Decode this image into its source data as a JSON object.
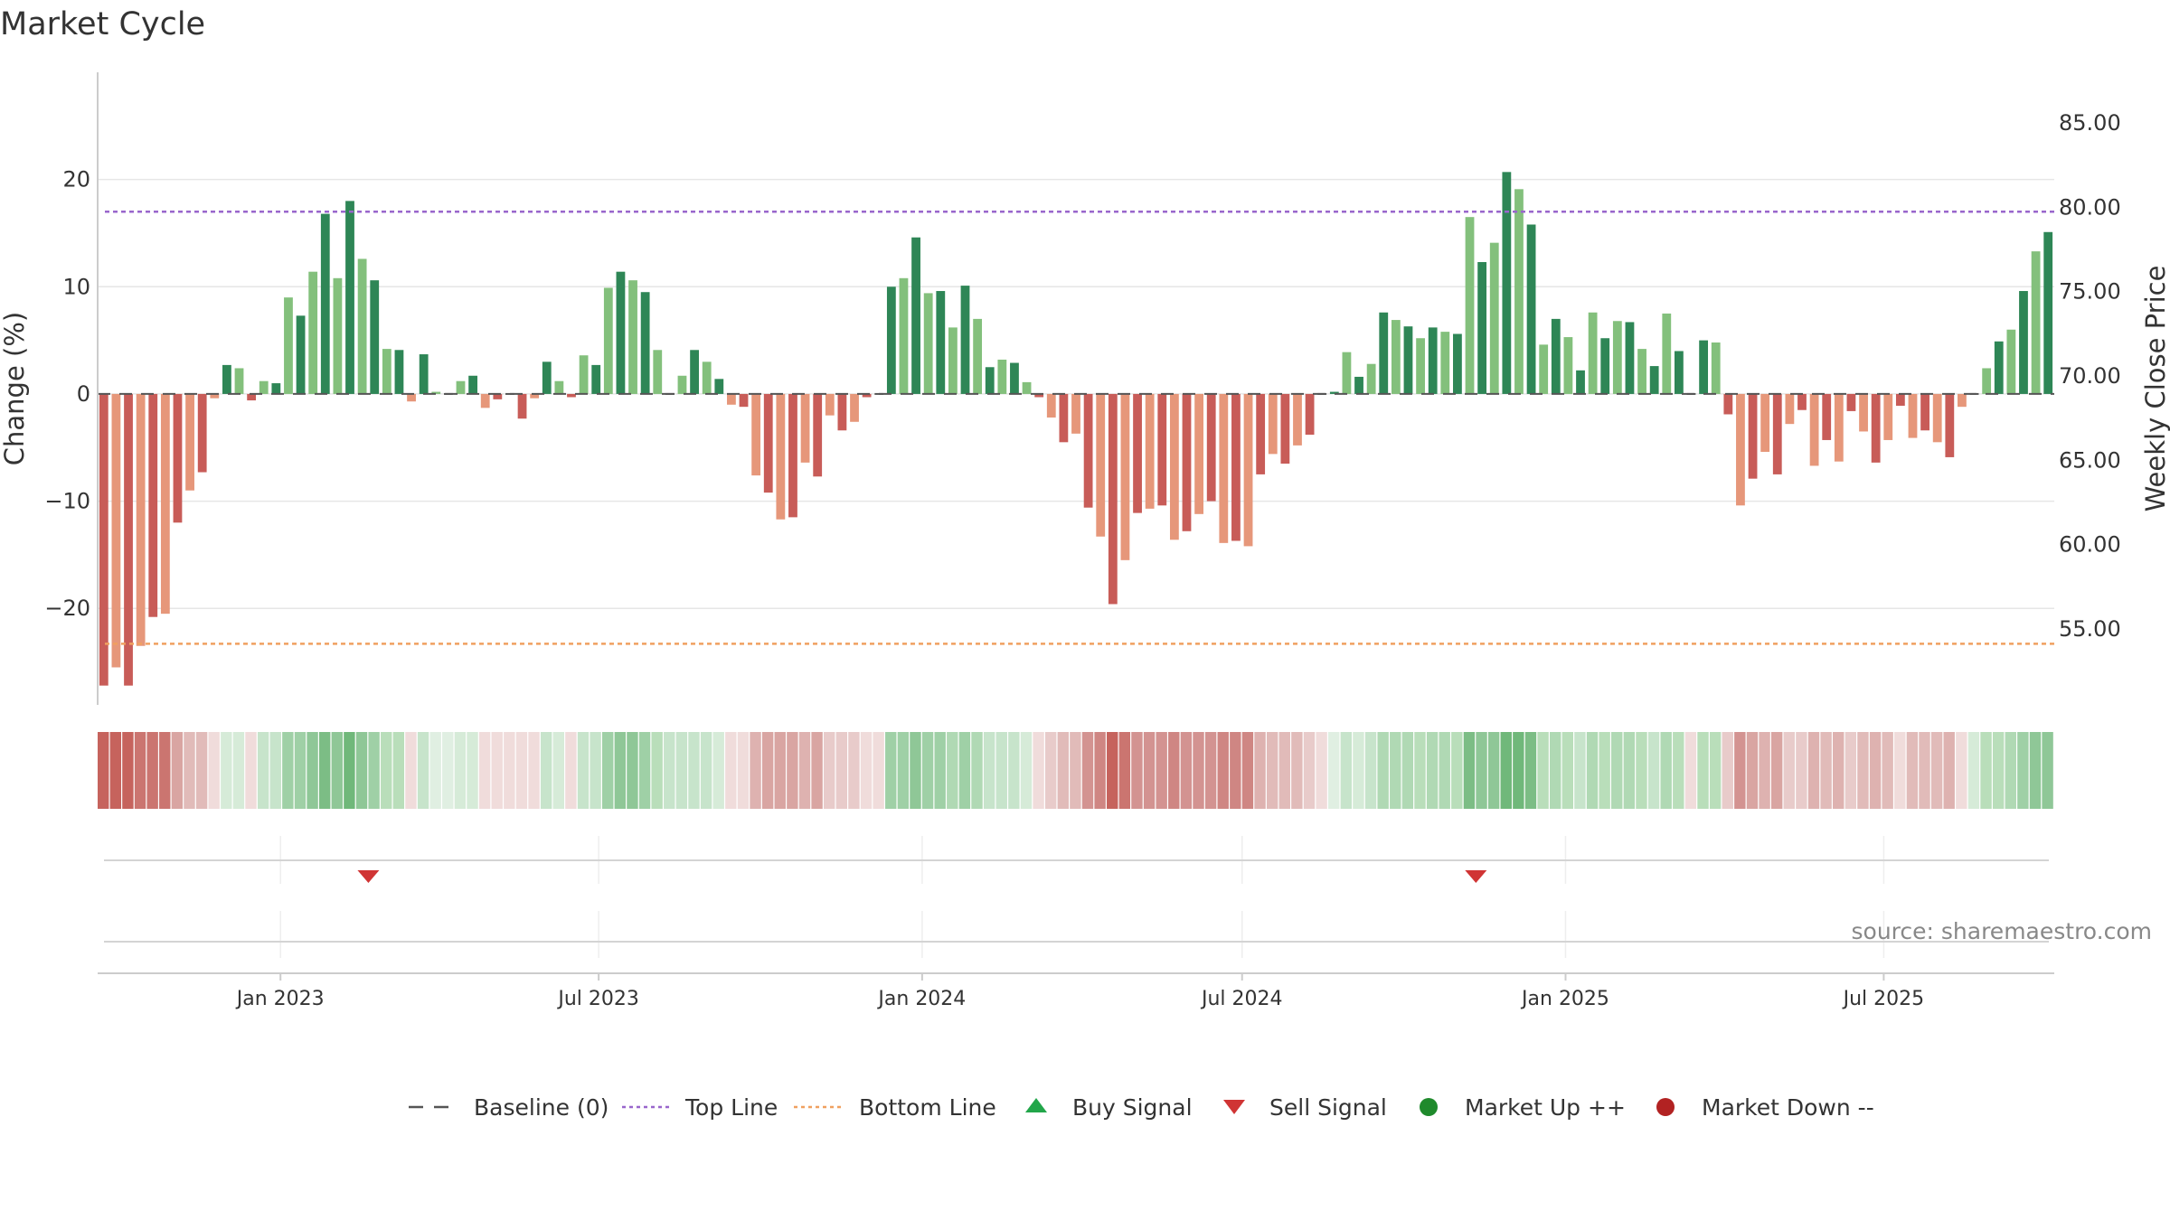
{
  "chart_data": {
    "type": "bar",
    "title": "Market Cycle",
    "ylabel_left": "Change (%)",
    "ylabel_right": "Weekly Close Price",
    "ylim_left": [
      -29,
      30
    ],
    "ylim_right": [
      50.5,
      88
    ],
    "left_ticks": [
      20,
      10,
      0,
      -10,
      -20
    ],
    "left_tick_labels": [
      "20",
      "10",
      "0",
      "−10",
      "−20"
    ],
    "right_ticks": [
      85,
      80,
      75,
      70,
      65,
      60,
      55
    ],
    "right_tick_labels": [
      "85.00",
      "80.00",
      "75.00",
      "70.00",
      "65.00",
      "60.00",
      "55.00"
    ],
    "x_start": "2022-09-19",
    "x_tick_dates": [
      "2023-01-01",
      "2023-07-01",
      "2024-01-01",
      "2024-07-01",
      "2025-01-01",
      "2025-07-01"
    ],
    "x_tick_labels": [
      "Jan 2023",
      "Jul 2023",
      "Jan 2024",
      "Jul 2024",
      "Jan 2025",
      "Jul 2025"
    ],
    "top_line": 17,
    "bottom_line": -23.3,
    "baseline": 0,
    "values": [
      -27.2,
      -25.5,
      -27.2,
      -23.5,
      -20.8,
      -20.5,
      -12.0,
      -9.0,
      -7.3,
      -0.4,
      2.7,
      2.4,
      -0.6,
      1.2,
      1.0,
      9.0,
      7.3,
      11.4,
      16.8,
      10.8,
      18.0,
      12.6,
      10.6,
      4.2,
      4.1,
      -0.7,
      3.7,
      0.2,
      0,
      1.2,
      1.7,
      -1.3,
      -0.5,
      0,
      -2.3,
      -0.4,
      3.0,
      1.2,
      -0.3,
      3.6,
      2.7,
      9.9,
      11.4,
      10.6,
      9.5,
      4.1,
      0,
      1.7,
      4.1,
      3.0,
      1.4,
      -1.0,
      -1.2,
      -7.6,
      -9.2,
      -11.7,
      -11.5,
      -6.4,
      -7.7,
      -2.0,
      -3.4,
      -2.6,
      -0.3,
      0,
      10.0,
      10.8,
      14.6,
      9.4,
      9.6,
      6.2,
      10.1,
      7.0,
      2.5,
      3.2,
      2.9,
      1.1,
      -0.3,
      -2.2,
      -4.5,
      -3.7,
      -10.6,
      -13.3,
      -19.6,
      -15.5,
      -11.1,
      -10.7,
      -10.4,
      -13.6,
      -12.8,
      -11.2,
      -10.0,
      -13.9,
      -13.7,
      -14.2,
      -7.5,
      -5.6,
      -6.5,
      -4.8,
      -3.8,
      0,
      0.2,
      3.9,
      1.6,
      2.8,
      7.6,
      6.9,
      6.3,
      5.2,
      6.2,
      5.8,
      5.6,
      16.5,
      12.3,
      14.1,
      20.7,
      19.1,
      15.8,
      4.6,
      7.0,
      5.3,
      2.2,
      7.6,
      5.2,
      6.8,
      6.7,
      4.2,
      2.6,
      7.5,
      4.0,
      0,
      5.0,
      4.8,
      -1.9,
      -10.4,
      -7.9,
      -5.4,
      -7.5,
      -2.8,
      -1.5,
      -6.7,
      -4.3,
      -6.3,
      -1.6,
      -3.5,
      -6.4,
      -4.3,
      -1.1,
      -4.1,
      -3.4,
      -4.5,
      -5.9,
      -1.2,
      0,
      2.4,
      4.9,
      6.0,
      9.6,
      13.3,
      15.1
    ],
    "heatmap_colors": [
      "#c6635d",
      "#c6635d",
      "#c6635d",
      "#cb7570",
      "#cb7570",
      "#cb7570",
      "#d9a5a2",
      "#e1bbb9",
      "#e1bbb9",
      "#f0dcdb",
      "#d6ebd8",
      "#d6ebd8",
      "#f0dcdb",
      "#c7e4cb",
      "#c7e4cb",
      "#9fd0a6",
      "#9fd0a6",
      "#8fc797",
      "#7cbd85",
      "#8fc797",
      "#70b87a",
      "#8fc797",
      "#9fd0a6",
      "#b9deba",
      "#b9deba",
      "#f0dcdb",
      "#c7e4cb",
      "#e0efe2",
      "#e0efe2",
      "#d6ebd8",
      "#d6ebd8",
      "#f0dcdb",
      "#f0dcdb",
      "#f0dcdb",
      "#f0dcdb",
      "#f0dcdb",
      "#c7e4cb",
      "#d6ebd8",
      "#f0dcdb",
      "#c7e4cb",
      "#c7e4cb",
      "#9fd0a6",
      "#8fc797",
      "#8fc797",
      "#9fd0a6",
      "#b9deba",
      "#c7e4cb",
      "#c7e4cb",
      "#c7e4cb",
      "#c7e4cb",
      "#d6ebd8",
      "#f0dcdb",
      "#f0dcdb",
      "#deb2b0",
      "#d9a5a2",
      "#d9a5a2",
      "#d9a5a2",
      "#deb2b0",
      "#d9a5a2",
      "#e8cbca",
      "#e8cbca",
      "#e8cbca",
      "#f0dcdb",
      "#f0dcdb",
      "#9fd0a6",
      "#9fd0a6",
      "#8fc797",
      "#9fd0a6",
      "#9fd0a6",
      "#b0d9b4",
      "#9fd0a6",
      "#b0d9b4",
      "#c7e4cb",
      "#c7e4cb",
      "#c7e4cb",
      "#d6ebd8",
      "#f0dcdb",
      "#e8cbca",
      "#e1bbb9",
      "#e1bbb9",
      "#d39391",
      "#cf8683",
      "#c6635d",
      "#cb7570",
      "#d39391",
      "#d39391",
      "#d39391",
      "#cf8683",
      "#d39391",
      "#d39391",
      "#d39391",
      "#cf8683",
      "#cf8683",
      "#cf8683",
      "#deb2b0",
      "#e1bbb9",
      "#e1bbb9",
      "#e1bbb9",
      "#e8cbca",
      "#f0dcdb",
      "#e0efe2",
      "#c7e4cb",
      "#d6ebd8",
      "#c7e4cb",
      "#b0d9b4",
      "#b0d9b4",
      "#b0d9b4",
      "#b9deba",
      "#b0d9b4",
      "#b0d9b4",
      "#b9deba",
      "#7cbd85",
      "#8fc797",
      "#8fc797",
      "#70b87a",
      "#70b87a",
      "#7cbd85",
      "#b9deba",
      "#b0d9b4",
      "#b9deba",
      "#c7e4cb",
      "#b0d9b4",
      "#b9deba",
      "#b0d9b4",
      "#b0d9b4",
      "#b9deba",
      "#c7e4cb",
      "#b0d9b4",
      "#b9deba",
      "#f0dcdb",
      "#b9deba",
      "#b9deba",
      "#e8cbca",
      "#d39391",
      "#d9a5a2",
      "#deb2b0",
      "#d9a5a2",
      "#e8cbca",
      "#e8cbca",
      "#deb2b0",
      "#e1bbb9",
      "#deb2b0",
      "#e8cbca",
      "#e1bbb9",
      "#deb2b0",
      "#e1bbb9",
      "#f0dcdb",
      "#e1bbb9",
      "#e1bbb9",
      "#e1bbb9",
      "#deb2b0",
      "#f0dcdb",
      "#d6ebd8",
      "#b9deba",
      "#b9deba",
      "#b0d9b4",
      "#9fd0a6",
      "#8fc797",
      "#8fc797"
    ],
    "sell_signal_dates": [
      "2023-02-20",
      "2024-11-11"
    ],
    "colors": {
      "up_strong": "#2e8656",
      "up_light": "#83c07c",
      "down_strong": "#c85c58",
      "down_light": "#e6977a",
      "top_line": "#9966cc",
      "bottom_line": "#f0a060",
      "baseline": "#555555",
      "sell": "#d03434",
      "buy": "#22a64a",
      "market_up": "#1f8a2c",
      "market_down": "#b22222"
    },
    "source": "source: sharemaestro.com",
    "legend": [
      {
        "key": "baseline",
        "label": "Baseline (0)",
        "icon": "dash-line"
      },
      {
        "key": "top",
        "label": "Top Line",
        "icon": "purple-dotted-line"
      },
      {
        "key": "bottom",
        "label": "Bottom Line",
        "icon": "orange-dotted-line"
      },
      {
        "key": "buy",
        "label": "Buy Signal",
        "icon": "green-up-triangle"
      },
      {
        "key": "sell",
        "label": "Sell Signal",
        "icon": "red-down-triangle"
      },
      {
        "key": "up",
        "label": "Market Up ++",
        "icon": "green-circle"
      },
      {
        "key": "down",
        "label": "Market Down --",
        "icon": "red-circle"
      }
    ]
  }
}
